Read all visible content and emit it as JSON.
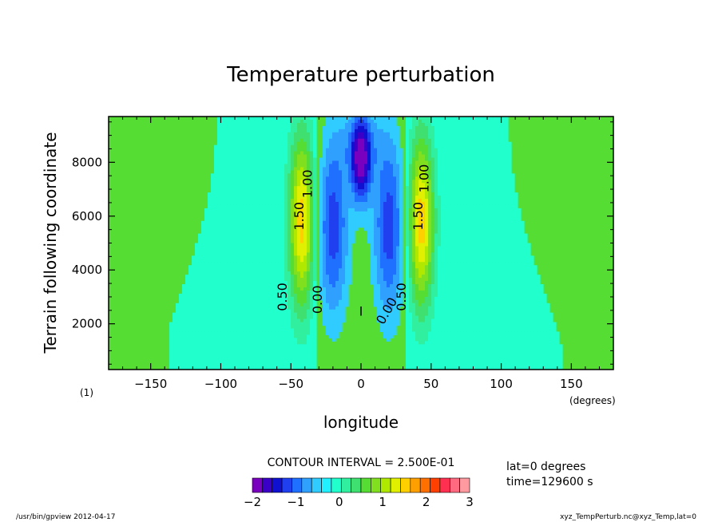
{
  "chart_data": {
    "type": "heatmap",
    "title": "Temperature perturbation",
    "xlabel": "longitude",
    "ylabel": "Terrain following coordinate",
    "x_unit_label": "(degrees)",
    "panel_label": "(1)",
    "xlim": [
      -180,
      180
    ],
    "ylim": [
      300,
      9700
    ],
    "x_ticks": [
      -150,
      -100,
      -50,
      0,
      50,
      100,
      150
    ],
    "y_ticks": [
      2000,
      4000,
      6000,
      8000
    ],
    "background_value_color": "#55dd33",
    "contour_interval_text": "CONTOUR INTERVAL = 2.500E-01",
    "contour_labels": [
      {
        "text": "0.50",
        "x": -53,
        "y": 3000,
        "rot": -90
      },
      {
        "text": "1.50",
        "x": -41,
        "y": 6000,
        "rot": -90
      },
      {
        "text": "1.00",
        "x": -35,
        "y": 7200,
        "rot": -90
      },
      {
        "text": "0.00",
        "x": -28,
        "y": 2900,
        "rot": -90
      },
      {
        "text": "0.00",
        "x": 21,
        "y": 2400,
        "rot": -60
      },
      {
        "text": "0.50",
        "x": 32,
        "y": 3000,
        "rot": -90
      },
      {
        "text": "1.50",
        "x": 44,
        "y": 6000,
        "rot": -90
      },
      {
        "text": "1.00",
        "x": 48,
        "y": 7400,
        "rot": -90
      },
      {
        "text": "I",
        "x": 0,
        "y": 2300,
        "rot": 0
      }
    ],
    "colorbar": {
      "min": -2,
      "max": 3,
      "step": 0.25,
      "tick_labels": [
        "-2",
        "-1",
        "0",
        "1",
        "2",
        "3"
      ],
      "colors": [
        "#7a00c0",
        "#3a00c8",
        "#1010d0",
        "#2040f0",
        "#2070ff",
        "#30a0ff",
        "#30ccff",
        "#20f0ff",
        "#20ffcc",
        "#30f0a0",
        "#40e070",
        "#55dd33",
        "#80e020",
        "#b0e800",
        "#e0f000",
        "#ffd000",
        "#ffa000",
        "#ff7000",
        "#ff4000",
        "#ff3050",
        "#ff6a80",
        "#ff9aa0"
      ]
    }
  },
  "info": {
    "lat": "lat=0 degrees",
    "time": "time=129600 s"
  },
  "footer": {
    "left": "/usr/bin/gpview  2012-04-17",
    "right": "xyz_TempPerturb.nc@xyz_Temp,lat=0"
  }
}
